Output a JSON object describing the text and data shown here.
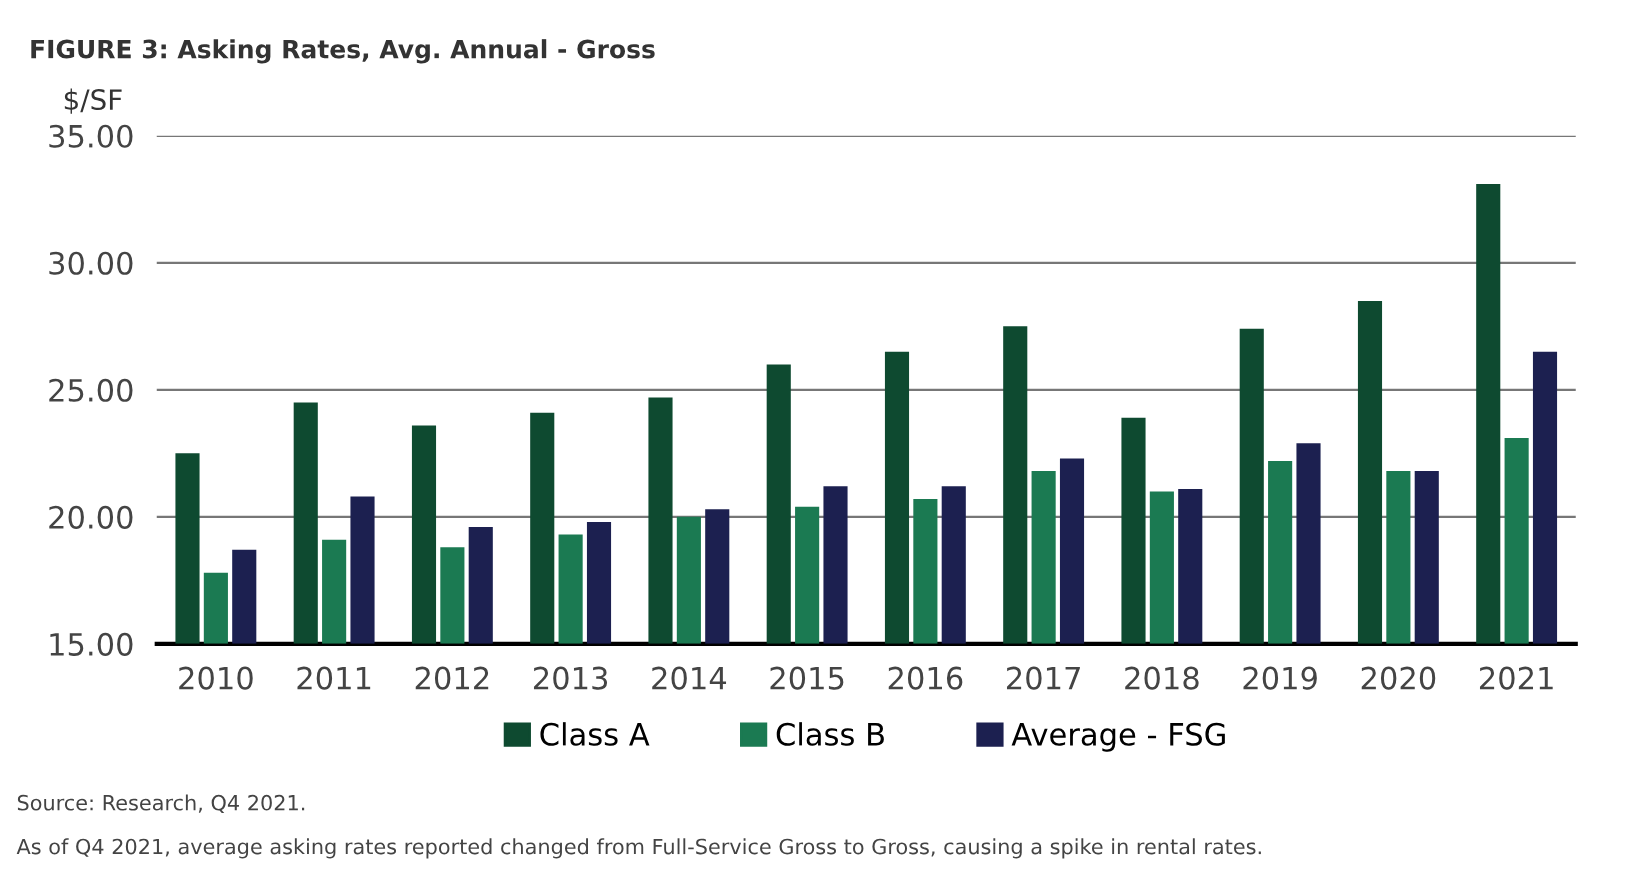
{
  "chart_data": {
    "type": "bar",
    "title": "FIGURE 3: Asking Rates, Avg. Annual - Gross",
    "ylabel": "$/SF",
    "categories": [
      "2010",
      "2011",
      "2012",
      "2013",
      "2014",
      "2015",
      "2016",
      "2017",
      "2018",
      "2019",
      "2020",
      "2021"
    ],
    "series": [
      {
        "name": "Class A",
        "color": "#0e4a30",
        "values": [
          22.5,
          24.5,
          23.6,
          24.1,
          24.7,
          26.0,
          26.5,
          27.5,
          23.9,
          27.4,
          28.5,
          33.1
        ]
      },
      {
        "name": "Class B",
        "color": "#1b7a52",
        "values": [
          17.8,
          19.1,
          18.8,
          19.3,
          20.0,
          20.4,
          20.7,
          21.8,
          21.0,
          22.2,
          21.8,
          23.1
        ]
      },
      {
        "name": "Average - FSG",
        "color": "#1c2050",
        "values": [
          18.7,
          20.8,
          19.6,
          19.8,
          20.3,
          21.2,
          21.2,
          22.3,
          21.1,
          22.9,
          21.8,
          26.5
        ]
      }
    ],
    "ylim": [
      15,
      35
    ],
    "yticks": [
      {
        "value": 15,
        "label": "15.00"
      },
      {
        "value": 20,
        "label": "20.00"
      },
      {
        "value": 25,
        "label": "25.00"
      },
      {
        "value": 30,
        "label": "30.00"
      },
      {
        "value": 35,
        "label": "35.00"
      }
    ],
    "grid": "y",
    "legend": "bottom",
    "annotations": [
      "Source: Research, Q4 2021.",
      "As of Q4 2021, average asking rates reported changed from Full-Service Gross to Gross, causing a spike in rental rates."
    ]
  }
}
